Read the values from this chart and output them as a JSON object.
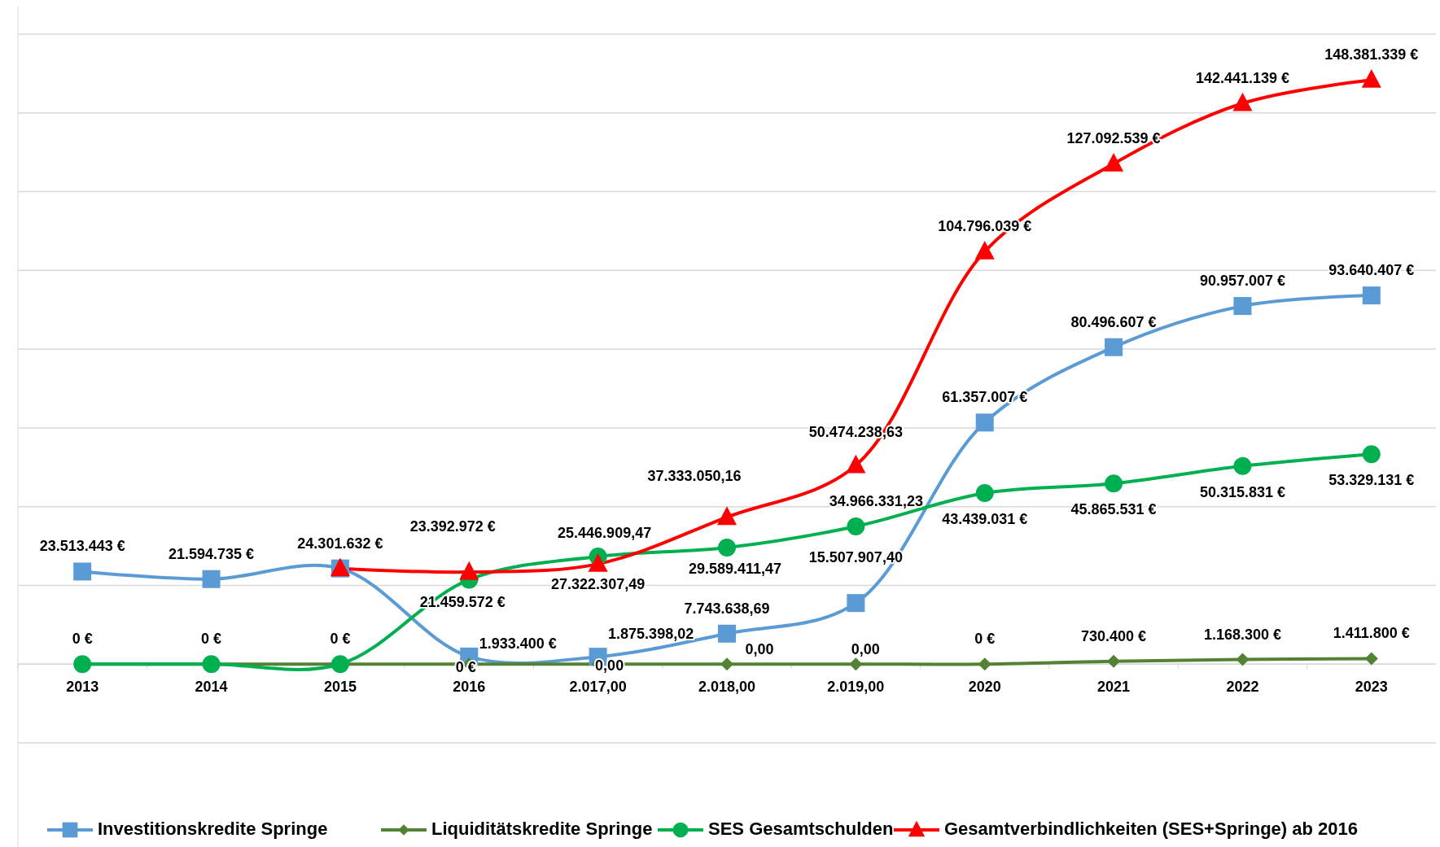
{
  "chart_data": {
    "type": "line",
    "categories": [
      "2013",
      "2014",
      "2015",
      "2016",
      "2.017,00",
      "2.018,00",
      "2.019,00",
      "2020",
      "2021",
      "2022",
      "2023"
    ],
    "ylim": [
      -20000000,
      160000000
    ],
    "yticks": [
      {
        "value": -20000000,
        "label": null
      },
      {
        "value": 0,
        "label": null
      },
      {
        "value": 20000000,
        "label": null
      },
      {
        "value": 40000000,
        "label": null
      },
      {
        "value": 60000000,
        "label": null
      },
      {
        "value": 80000000,
        "label": null
      },
      {
        "value": 100000000,
        "label": null
      },
      {
        "value": 120000000,
        "label": null
      },
      {
        "value": 140000000,
        "label": null
      },
      {
        "value": 160000000,
        "label": null
      }
    ],
    "grid": "y",
    "tick_labels": "x",
    "legend": "bottom",
    "series": [
      {
        "name": "Investitionskredite Springe",
        "color": "#5b9bd5",
        "marker": "square",
        "values": [
          23513443,
          21594735,
          24301632,
          1933400,
          1875398.02,
          7743638.69,
          15507907.4,
          61357007,
          80496607,
          90957007,
          93640407
        ],
        "value_labels": [
          "23.513.443 €",
          "21.594.735 €",
          "24.301.632 €",
          "1.933.400 €",
          "1.875.398,02",
          "7.743.638,69",
          "15.507.907,40",
          "61.357.007 €",
          "80.496.607 €",
          "90.957.007 €",
          "93.640.407 €"
        ]
      },
      {
        "name": "Liquiditätskredite Springe",
        "color": "#548235",
        "marker": "diamond",
        "values": [
          0,
          0,
          0,
          0,
          0,
          0,
          0,
          0,
          730400,
          1168300,
          1411800
        ],
        "value_labels": [
          "0 €",
          "0 €",
          "0 €",
          "0 €",
          "0,00",
          "0,00",
          "0,00",
          "0 €",
          "730.400 €",
          "1.168.300 €",
          "1.411.800 €"
        ]
      },
      {
        "name": "SES Gesamtschulden",
        "color": "#00b050",
        "marker": "circle",
        "values": [
          0,
          0,
          0,
          21459572,
          27322307.49,
          29589411.47,
          34966331.23,
          43439031,
          45865531,
          50315831,
          53329131
        ],
        "value_labels": [
          null,
          null,
          null,
          "21.459.572 €",
          "27.322.307,49",
          "29.589.411,47",
          "34.966.331,23",
          "43.439.031 €",
          "45.865.531 €",
          "50.315.831 €",
          "53.329.131 €"
        ]
      },
      {
        "name": "Gesamtverbindlichkeiten (SES+Springe) ab 2016",
        "color": "#ff0000",
        "marker": "triangle",
        "values": [
          null,
          null,
          24301632,
          23392972,
          25446909.47,
          37333050.16,
          50474238.63,
          104796039,
          127092539,
          142441139,
          148381339
        ],
        "value_labels": [
          null,
          null,
          null,
          "23.392.972 €",
          "25.446.909,47",
          "37.333.050,16",
          "50.474.238,63",
          "104.796.039 €",
          "127.092.539 €",
          "142.441.139 €",
          "148.381.339 €"
        ]
      }
    ]
  }
}
